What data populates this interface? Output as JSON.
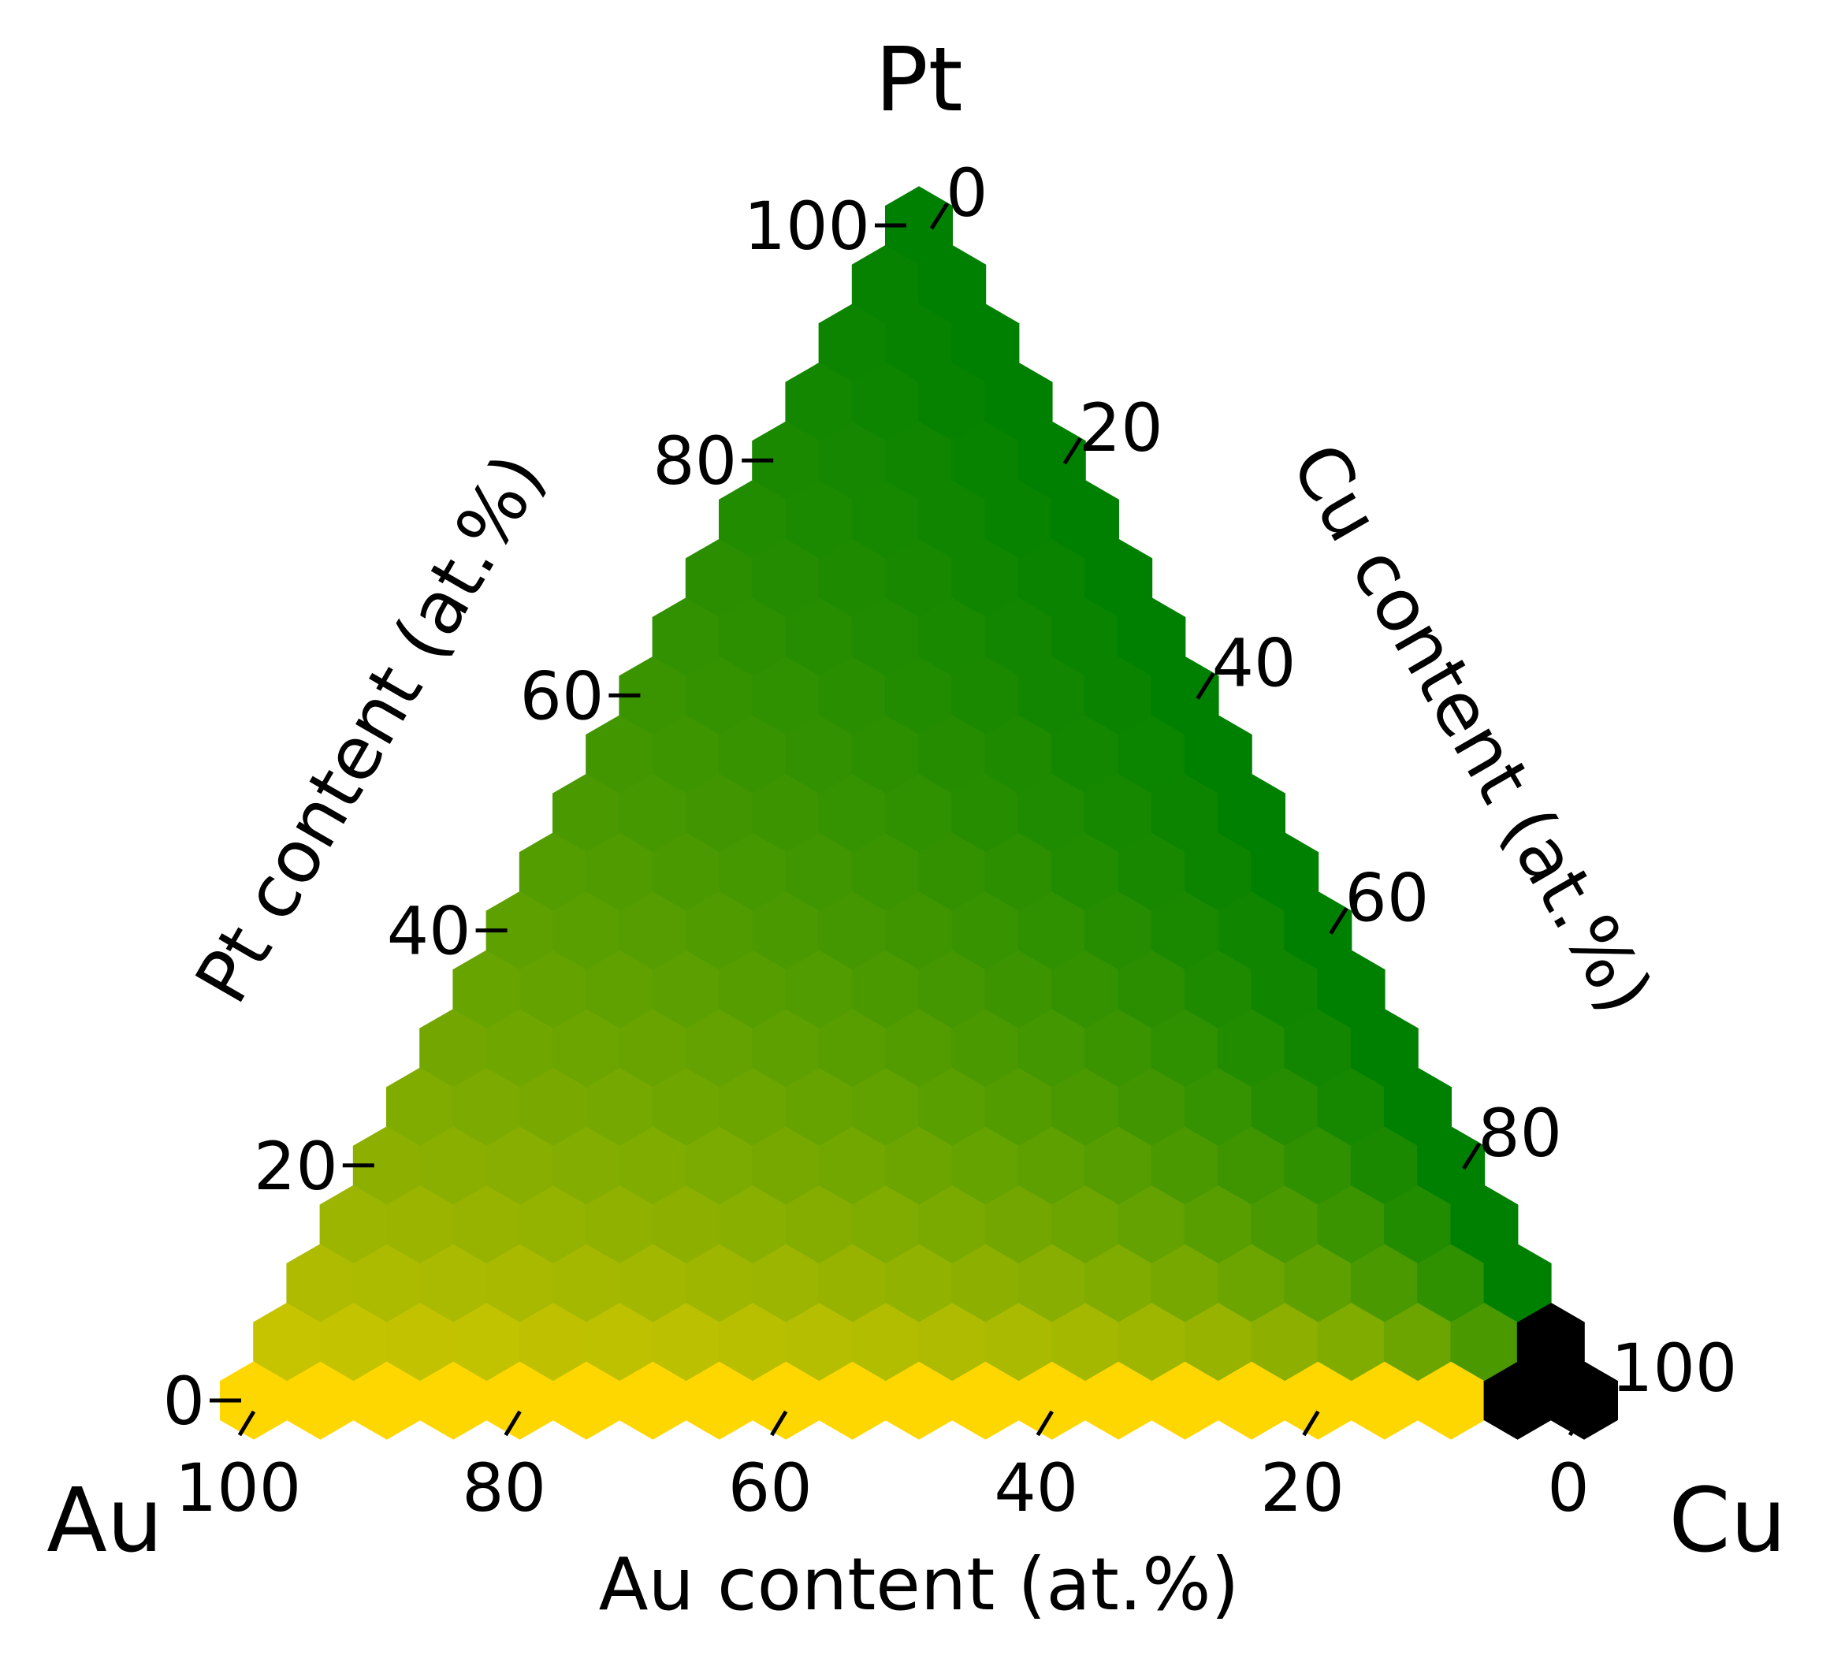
{
  "chart_data": {
    "type": "heatmap",
    "subtype": "ternary-hexbin",
    "corners": {
      "top": "Pt",
      "left": "Au",
      "right": "Cu"
    },
    "axes": {
      "bottom": {
        "label": "Au content (at.%)",
        "ticks": [
          "100",
          "80",
          "60",
          "40",
          "20",
          "0"
        ],
        "range": [
          100,
          0
        ]
      },
      "left": {
        "label": "Pt content (at.%)",
        "ticks": [
          "0",
          "20",
          "40",
          "60",
          "80",
          "100"
        ],
        "range": [
          0,
          100
        ]
      },
      "right": {
        "label": "Cu content (at.%)",
        "ticks": [
          "0",
          "20",
          "40",
          "60",
          "80",
          "100"
        ],
        "range": [
          0,
          100
        ]
      }
    },
    "grid_step_at_pct": 5,
    "color_mapping": {
      "description_units": "color blends by composition",
      "pt_rich": "#008000",
      "au_rich": "#ffd700",
      "cu_corner": "#000000"
    },
    "grid": false,
    "legend": "none"
  }
}
